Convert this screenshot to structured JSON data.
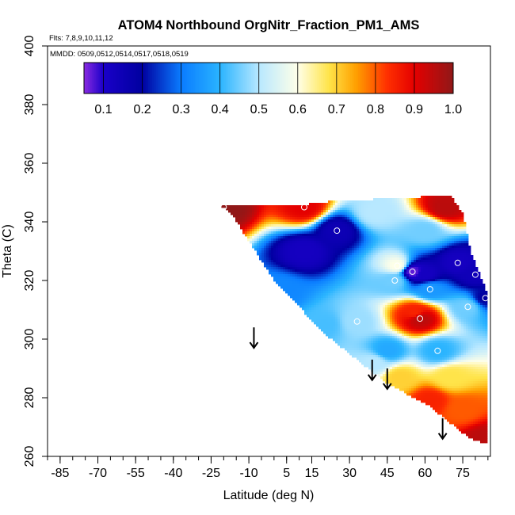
{
  "chart_data": {
    "type": "heatmap",
    "title": "ATOM4 Northbound OrgNitr_Fraction_PM1_AMS",
    "flights_label": "Flts: 7,8,9,10,11,12",
    "dates_label": "MMDD: 0509,0512,0514,0517,0518,0519",
    "xlabel": "Latitude (deg N)",
    "ylabel": "Theta (C)",
    "xlim": [
      -90,
      86
    ],
    "ylim": [
      260,
      400
    ],
    "x_ticks": [
      -85,
      -70,
      -55,
      -40,
      -25,
      -10,
      5,
      15,
      30,
      45,
      60,
      75
    ],
    "x_minor_step": 5,
    "y_ticks": [
      260,
      280,
      300,
      320,
      340,
      360,
      380,
      400
    ],
    "colorbar": {
      "range": [
        0.05,
        1.0
      ],
      "ticks": [
        "0.1",
        "0.2",
        "0.3",
        "0.4",
        "0.5",
        "0.6",
        "0.7",
        "0.8",
        "0.9",
        "1.0"
      ],
      "stops": [
        {
          "v": 0.05,
          "c": "#8a2be2"
        },
        {
          "v": 0.1,
          "c": "#1a00c8"
        },
        {
          "v": 0.2,
          "c": "#0000a0"
        },
        {
          "v": 0.3,
          "c": "#0a7cff"
        },
        {
          "v": 0.4,
          "c": "#2ab4ff"
        },
        {
          "v": 0.5,
          "c": "#b8e8ff"
        },
        {
          "v": 0.6,
          "c": "#ffffe8"
        },
        {
          "v": 0.68,
          "c": "#ffe44a"
        },
        {
          "v": 0.75,
          "c": "#ffa000"
        },
        {
          "v": 0.83,
          "c": "#ff3000"
        },
        {
          "v": 0.9,
          "c": "#e40000"
        },
        {
          "v": 1.0,
          "c": "#901818"
        }
      ]
    },
    "field_boundary": [
      [
        -21,
        345.5
      ],
      [
        8,
        345.5
      ],
      [
        23,
        347
      ],
      [
        70,
        349
      ],
      [
        75,
        343
      ],
      [
        78,
        330
      ],
      [
        85,
        315
      ],
      [
        85,
        264
      ],
      [
        78,
        266
      ],
      [
        62,
        277
      ],
      [
        45,
        285
      ],
      [
        30,
        295
      ],
      [
        20,
        302
      ],
      [
        0,
        320
      ],
      [
        -17,
        343
      ]
    ],
    "field_nodes": [
      {
        "lat": -20,
        "theta": 345,
        "value": 1.0
      },
      {
        "lat": 12,
        "theta": 345,
        "value": 0.9
      },
      {
        "lat": 25,
        "theta": 337,
        "value": 0.15
      },
      {
        "lat": 12,
        "theta": 330,
        "value": 0.12
      },
      {
        "lat": 40,
        "theta": 343,
        "value": 0.5
      },
      {
        "lat": 68,
        "theta": 345,
        "value": 0.95
      },
      {
        "lat": 60,
        "theta": 337,
        "value": 0.45
      },
      {
        "lat": 49,
        "theta": 325,
        "value": 0.6
      },
      {
        "lat": 55,
        "theta": 323,
        "value": 0.07
      },
      {
        "lat": 60,
        "theta": 322,
        "value": 0.12
      },
      {
        "lat": 73,
        "theta": 326,
        "value": 0.12
      },
      {
        "lat": 80,
        "theta": 322,
        "value": 0.14
      },
      {
        "lat": 48,
        "theta": 320,
        "value": 0.45
      },
      {
        "lat": 62,
        "theta": 317,
        "value": 0.35
      },
      {
        "lat": 84,
        "theta": 314,
        "value": 0.2
      },
      {
        "lat": 2,
        "theta": 316,
        "value": 0.32
      },
      {
        "lat": 33,
        "theta": 306,
        "value": 0.48
      },
      {
        "lat": 56,
        "theta": 309,
        "value": 0.85
      },
      {
        "lat": 58,
        "theta": 307,
        "value": 0.95
      },
      {
        "lat": 77,
        "theta": 311,
        "value": 0.45
      },
      {
        "lat": 20,
        "theta": 305,
        "value": 0.42
      },
      {
        "lat": 45,
        "theta": 296,
        "value": 0.38
      },
      {
        "lat": 65,
        "theta": 296,
        "value": 0.4
      },
      {
        "lat": 40,
        "theta": 292,
        "value": 0.5
      },
      {
        "lat": 50,
        "theta": 287,
        "value": 0.7
      },
      {
        "lat": 70,
        "theta": 287,
        "value": 0.68
      },
      {
        "lat": 62,
        "theta": 279,
        "value": 0.85
      },
      {
        "lat": 75,
        "theta": 276,
        "value": 0.8
      },
      {
        "lat": 84,
        "theta": 266,
        "value": 0.95
      }
    ],
    "sample_points": [
      {
        "lat": -20,
        "theta": 345
      },
      {
        "lat": 12,
        "theta": 345
      },
      {
        "lat": 25,
        "theta": 337
      },
      {
        "lat": 49,
        "theta": 325
      },
      {
        "lat": 55,
        "theta": 323
      },
      {
        "lat": 48,
        "theta": 320
      },
      {
        "lat": 73,
        "theta": 326
      },
      {
        "lat": 80,
        "theta": 322
      },
      {
        "lat": 62,
        "theta": 317
      },
      {
        "lat": 84,
        "theta": 314
      },
      {
        "lat": 77,
        "theta": 311
      },
      {
        "lat": 33,
        "theta": 306
      },
      {
        "lat": 58,
        "theta": 307
      },
      {
        "lat": 65,
        "theta": 296
      }
    ],
    "arrows": [
      {
        "lat": -8,
        "theta_top": 304,
        "theta_tip": 297
      },
      {
        "lat": 39,
        "theta_top": 293,
        "theta_tip": 286
      },
      {
        "lat": 45,
        "theta_top": 290,
        "theta_tip": 283
      },
      {
        "lat": 67,
        "theta_top": 273,
        "theta_tip": 266
      }
    ]
  }
}
